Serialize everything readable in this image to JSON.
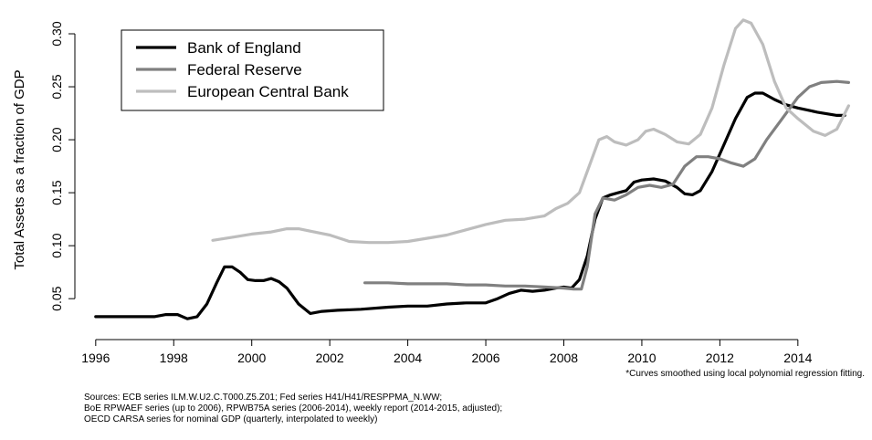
{
  "chart_data": {
    "type": "line",
    "title": "",
    "xlabel": "",
    "ylabel": "Total Assets as a fraction of GDP",
    "xlim": [
      1995.7,
      2015.9
    ],
    "ylim": [
      0.02,
      0.325
    ],
    "xticks": [
      1996,
      1998,
      2000,
      2002,
      2004,
      2006,
      2008,
      2010,
      2012,
      2014
    ],
    "xtick_labels": [
      "1996",
      "1998",
      "2000",
      "2002",
      "2004",
      "2006",
      "2008",
      "2010",
      "2012",
      "2014"
    ],
    "yticks": [
      0.05,
      0.1,
      0.15,
      0.2,
      0.25,
      0.3
    ],
    "ytick_labels": [
      "0.05",
      "0.10",
      "0.15",
      "0.20",
      "0.25",
      "0.30"
    ],
    "grid": false,
    "legend_position": "top-left",
    "series": [
      {
        "name": "Bank of England",
        "color": "#000000",
        "points": [
          [
            1996.0,
            0.033
          ],
          [
            1996.5,
            0.033
          ],
          [
            1997.0,
            0.033
          ],
          [
            1997.5,
            0.033
          ],
          [
            1997.8,
            0.035
          ],
          [
            1998.1,
            0.035
          ],
          [
            1998.35,
            0.031
          ],
          [
            1998.6,
            0.033
          ],
          [
            1998.85,
            0.045
          ],
          [
            1999.1,
            0.065
          ],
          [
            1999.3,
            0.08
          ],
          [
            1999.5,
            0.08
          ],
          [
            1999.7,
            0.075
          ],
          [
            1999.9,
            0.068
          ],
          [
            2000.1,
            0.067
          ],
          [
            2000.3,
            0.067
          ],
          [
            2000.5,
            0.069
          ],
          [
            2000.7,
            0.066
          ],
          [
            2000.9,
            0.06
          ],
          [
            2001.2,
            0.045
          ],
          [
            2001.5,
            0.036
          ],
          [
            2001.8,
            0.038
          ],
          [
            2002.2,
            0.039
          ],
          [
            2002.8,
            0.04
          ],
          [
            2003.5,
            0.042
          ],
          [
            2004.0,
            0.043
          ],
          [
            2004.5,
            0.043
          ],
          [
            2005.0,
            0.045
          ],
          [
            2005.5,
            0.046
          ],
          [
            2006.0,
            0.046
          ],
          [
            2006.3,
            0.05
          ],
          [
            2006.6,
            0.055
          ],
          [
            2006.9,
            0.058
          ],
          [
            2007.2,
            0.057
          ],
          [
            2007.5,
            0.058
          ],
          [
            2007.8,
            0.06
          ],
          [
            2008.0,
            0.061
          ],
          [
            2008.2,
            0.06
          ],
          [
            2008.4,
            0.068
          ],
          [
            2008.6,
            0.09
          ],
          [
            2008.8,
            0.125
          ],
          [
            2009.0,
            0.145
          ],
          [
            2009.2,
            0.148
          ],
          [
            2009.4,
            0.15
          ],
          [
            2009.6,
            0.152
          ],
          [
            2009.8,
            0.16
          ],
          [
            2010.0,
            0.162
          ],
          [
            2010.3,
            0.163
          ],
          [
            2010.6,
            0.161
          ],
          [
            2010.9,
            0.155
          ],
          [
            2011.1,
            0.149
          ],
          [
            2011.3,
            0.148
          ],
          [
            2011.5,
            0.152
          ],
          [
            2011.8,
            0.17
          ],
          [
            2012.1,
            0.195
          ],
          [
            2012.4,
            0.22
          ],
          [
            2012.7,
            0.24
          ],
          [
            2012.9,
            0.244
          ],
          [
            2013.1,
            0.244
          ],
          [
            2013.4,
            0.238
          ],
          [
            2013.7,
            0.233
          ],
          [
            2014.0,
            0.23
          ],
          [
            2014.5,
            0.226
          ],
          [
            2015.0,
            0.223
          ],
          [
            2015.2,
            0.223
          ]
        ]
      },
      {
        "name": "Federal Reserve",
        "color": "#808080",
        "points": [
          [
            2002.9,
            0.065
          ],
          [
            2003.5,
            0.065
          ],
          [
            2004.0,
            0.064
          ],
          [
            2004.5,
            0.064
          ],
          [
            2005.0,
            0.064
          ],
          [
            2005.5,
            0.063
          ],
          [
            2006.0,
            0.063
          ],
          [
            2006.5,
            0.062
          ],
          [
            2007.0,
            0.062
          ],
          [
            2007.5,
            0.061
          ],
          [
            2008.0,
            0.06
          ],
          [
            2008.25,
            0.059
          ],
          [
            2008.45,
            0.059
          ],
          [
            2008.6,
            0.08
          ],
          [
            2008.8,
            0.13
          ],
          [
            2009.0,
            0.145
          ],
          [
            2009.3,
            0.143
          ],
          [
            2009.6,
            0.148
          ],
          [
            2009.9,
            0.155
          ],
          [
            2010.2,
            0.157
          ],
          [
            2010.5,
            0.155
          ],
          [
            2010.8,
            0.158
          ],
          [
            2011.1,
            0.175
          ],
          [
            2011.4,
            0.184
          ],
          [
            2011.7,
            0.184
          ],
          [
            2012.0,
            0.182
          ],
          [
            2012.3,
            0.178
          ],
          [
            2012.6,
            0.175
          ],
          [
            2012.9,
            0.182
          ],
          [
            2013.2,
            0.2
          ],
          [
            2013.6,
            0.22
          ],
          [
            2014.0,
            0.24
          ],
          [
            2014.3,
            0.25
          ],
          [
            2014.6,
            0.254
          ],
          [
            2015.0,
            0.255
          ],
          [
            2015.3,
            0.254
          ]
        ]
      },
      {
        "name": "European Central Bank",
        "color": "#bdbdbd",
        "points": [
          [
            1999.0,
            0.105
          ],
          [
            1999.5,
            0.108
          ],
          [
            2000.0,
            0.111
          ],
          [
            2000.5,
            0.113
          ],
          [
            2000.9,
            0.116
          ],
          [
            2001.2,
            0.116
          ],
          [
            2001.6,
            0.113
          ],
          [
            2002.0,
            0.11
          ],
          [
            2002.5,
            0.104
          ],
          [
            2003.0,
            0.103
          ],
          [
            2003.5,
            0.103
          ],
          [
            2004.0,
            0.104
          ],
          [
            2004.5,
            0.107
          ],
          [
            2005.0,
            0.11
          ],
          [
            2005.5,
            0.115
          ],
          [
            2006.0,
            0.12
          ],
          [
            2006.5,
            0.124
          ],
          [
            2007.0,
            0.125
          ],
          [
            2007.5,
            0.128
          ],
          [
            2007.8,
            0.135
          ],
          [
            2008.1,
            0.14
          ],
          [
            2008.4,
            0.15
          ],
          [
            2008.7,
            0.18
          ],
          [
            2008.9,
            0.2
          ],
          [
            2009.1,
            0.203
          ],
          [
            2009.3,
            0.198
          ],
          [
            2009.6,
            0.195
          ],
          [
            2009.9,
            0.2
          ],
          [
            2010.1,
            0.208
          ],
          [
            2010.3,
            0.21
          ],
          [
            2010.6,
            0.205
          ],
          [
            2010.9,
            0.198
          ],
          [
            2011.2,
            0.196
          ],
          [
            2011.5,
            0.205
          ],
          [
            2011.8,
            0.23
          ],
          [
            2012.1,
            0.27
          ],
          [
            2012.4,
            0.305
          ],
          [
            2012.6,
            0.313
          ],
          [
            2012.8,
            0.31
          ],
          [
            2013.1,
            0.29
          ],
          [
            2013.4,
            0.255
          ],
          [
            2013.7,
            0.23
          ],
          [
            2014.0,
            0.22
          ],
          [
            2014.4,
            0.208
          ],
          [
            2014.7,
            0.204
          ],
          [
            2015.0,
            0.21
          ],
          [
            2015.3,
            0.232
          ]
        ]
      }
    ]
  },
  "notes": {
    "smoothing": "*Curves smoothed using local polynomial regression fitting.",
    "sources": [
      "Sources: ECB series ILM.W.U2.C.T000.Z5.Z01; Fed series  H41/H41/RESPPMA_N.WW;",
      "BoE RPWAEF series (up to 2006), RPWB75A series (2006-2014), weekly report (2014-2015, adjusted);",
      "OECD CARSA series for nominal GDP (quarterly, interpolated to weekly)"
    ]
  }
}
